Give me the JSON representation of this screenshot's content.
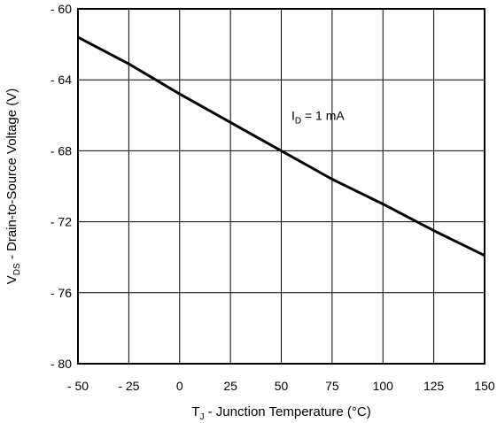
{
  "chart_data": {
    "type": "line",
    "title": "",
    "xlabel": {
      "main": "T",
      "sub": "J",
      "rest": " - Junction Temperature (°C)"
    },
    "ylabel": {
      "main": "V",
      "sub": "DS",
      "rest": " - Drain-to-Source Voltage (V)"
    },
    "xlim": [
      -50,
      150
    ],
    "ylim": [
      -80,
      -60
    ],
    "x_ticks": [
      -50,
      -25,
      0,
      25,
      50,
      75,
      100,
      125,
      150
    ],
    "x_tick_labels": [
      "- 50",
      "- 25",
      "0",
      "25",
      "50",
      "75",
      "100",
      "125",
      "150"
    ],
    "y_ticks": [
      -60,
      -64,
      -68,
      -72,
      -76,
      -80
    ],
    "y_tick_labels": [
      "- 60",
      "- 64",
      "- 68",
      "- 72",
      "- 76",
      "- 80"
    ],
    "grid": true,
    "annotation": {
      "main": "I",
      "sub": "D",
      "rest": " = 1 mA",
      "x": 55,
      "y": -66
    },
    "series": [
      {
        "x": [
          -50,
          -25,
          0,
          25,
          50,
          75,
          100,
          125,
          150
        ],
        "y": [
          -61.6,
          -63.1,
          -64.8,
          -66.4,
          -68.0,
          -69.6,
          -71.0,
          -72.5,
          -73.9
        ]
      }
    ]
  }
}
